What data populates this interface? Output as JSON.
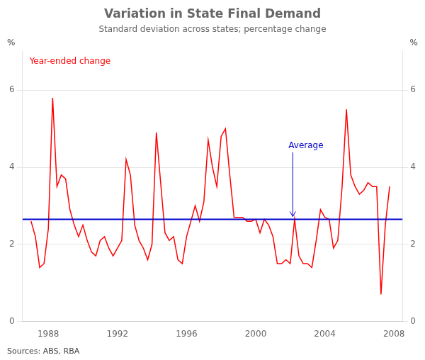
{
  "chart_data": {
    "type": "line",
    "title": "Variation in State Final Demand",
    "subtitle": "Standard deviation across states; percentage change",
    "source": "Sources: ABS, RBA",
    "y_label": "%",
    "y2_label": "%",
    "x": [
      1987.0,
      1987.25,
      1987.5,
      1987.75,
      1988.0,
      1988.25,
      1988.5,
      1988.75,
      1989.0,
      1989.25,
      1989.5,
      1989.75,
      1990.0,
      1990.25,
      1990.5,
      1990.75,
      1991.0,
      1991.25,
      1991.5,
      1991.75,
      1992.0,
      1992.25,
      1992.5,
      1992.75,
      1993.0,
      1993.25,
      1993.5,
      1993.75,
      1994.0,
      1994.25,
      1994.5,
      1994.75,
      1995.0,
      1995.25,
      1995.5,
      1995.75,
      1996.0,
      1996.25,
      1996.5,
      1996.75,
      1997.0,
      1997.25,
      1997.5,
      1997.75,
      1998.0,
      1998.25,
      1998.5,
      1998.75,
      1999.0,
      1999.25,
      1999.5,
      1999.75,
      2000.0,
      2000.25,
      2000.5,
      2000.75,
      2001.0,
      2001.25,
      2001.5,
      2001.75,
      2002.0,
      2002.25,
      2002.5,
      2002.75,
      2003.0,
      2003.25,
      2003.5,
      2003.75,
      2004.0,
      2004.25,
      2004.5,
      2004.75,
      2005.0,
      2005.25,
      2005.5,
      2005.75,
      2006.0,
      2006.25,
      2006.5,
      2006.75,
      2007.0,
      2007.25,
      2007.5,
      2007.75
    ],
    "series": [
      {
        "name": "Year-ended change",
        "color": "#ff0000",
        "values": [
          2.6,
          2.2,
          1.4,
          1.5,
          2.4,
          5.8,
          3.5,
          3.8,
          3.7,
          2.9,
          2.5,
          2.2,
          2.5,
          2.1,
          1.8,
          1.7,
          2.1,
          2.2,
          1.9,
          1.7,
          1.9,
          2.1,
          4.2,
          3.8,
          2.5,
          2.1,
          1.9,
          1.6,
          2.0,
          4.9,
          3.6,
          2.3,
          2.1,
          2.2,
          1.6,
          1.5,
          2.2,
          2.6,
          3.0,
          2.6,
          3.1,
          4.7,
          4.0,
          3.5,
          4.8,
          5.0,
          3.8,
          2.7,
          2.7,
          2.7,
          2.6,
          2.6,
          2.65,
          2.3,
          2.65,
          2.5,
          2.2,
          1.5,
          1.5,
          1.6,
          1.5,
          2.65,
          1.7,
          1.5,
          1.5,
          1.4,
          2.1,
          2.9,
          2.7,
          2.65,
          1.9,
          2.1,
          3.5,
          5.5,
          3.8,
          3.5,
          3.3,
          3.4,
          3.6,
          3.5,
          3.5,
          0.7,
          2.5,
          3.5
        ]
      }
    ],
    "reference_line": {
      "value": 2.65,
      "label": "Average",
      "color": "#0000cc"
    },
    "xlim": [
      1986.5,
      2008.5
    ],
    "xticks": [
      1988,
      1992,
      1996,
      2000,
      2004,
      2008
    ],
    "ylim": [
      0,
      7
    ],
    "yticks": [
      0,
      2,
      4,
      6
    ],
    "y2lim": [
      0,
      7
    ],
    "y2ticks": [
      0,
      2,
      4,
      6
    ],
    "grid": "y"
  }
}
